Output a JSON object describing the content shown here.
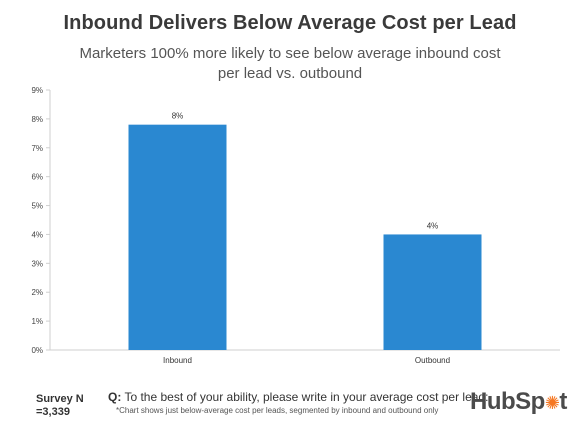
{
  "header": {
    "title": "Inbound Delivers Below Average Cost per Lead",
    "subtitle": "Marketers 100% more likely to see below average inbound cost per lead vs. outbound"
  },
  "footer": {
    "survey_line1": "Survey N",
    "survey_line2": "=3,339",
    "question_prefix": "Q:",
    "question_text": "To the best of your ability, please write in your average cost per lead:",
    "note": "*Chart shows just below-average cost per leads, segmented by inbound and outbound only"
  },
  "logo": {
    "text_a": "HubSp",
    "text_b": "t",
    "accent_color": "#f57722"
  },
  "colors": {
    "bar": "#2a88d1",
    "axis": "#cfcfcf"
  },
  "chart_data": {
    "type": "bar",
    "title": "Inbound Delivers Below Average Cost per Lead",
    "subtitle": "Marketers 100% more likely to see below average inbound cost per lead vs. outbound",
    "categories": [
      "Inbound",
      "Outbound"
    ],
    "values": [
      7.8,
      4.0
    ],
    "data_labels": [
      "8%",
      "4%"
    ],
    "ylim": [
      0,
      9
    ],
    "yticks": [
      0,
      1,
      2,
      3,
      4,
      5,
      6,
      7,
      8,
      9
    ],
    "ytick_labels": [
      "0%",
      "1%",
      "2%",
      "3%",
      "4%",
      "5%",
      "6%",
      "7%",
      "8%",
      "9%"
    ],
    "xlabel": "",
    "ylabel": "",
    "grid": false,
    "legend": "none"
  }
}
